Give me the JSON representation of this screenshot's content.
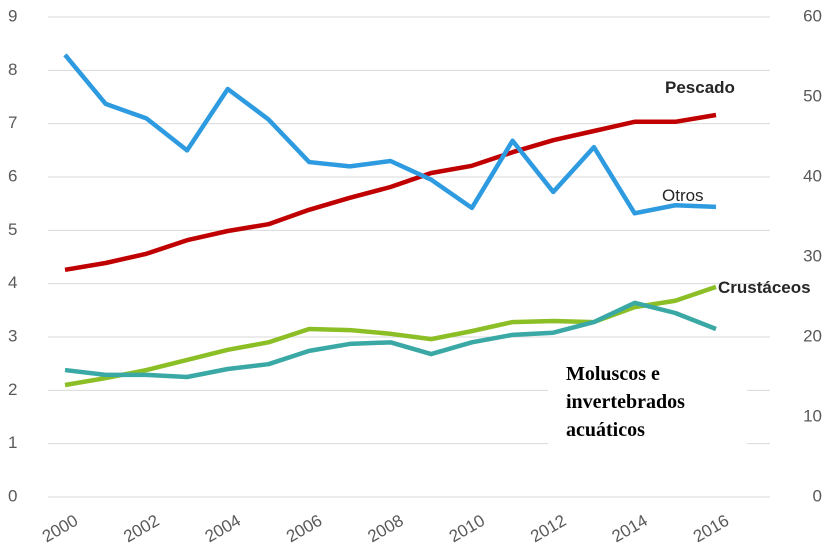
{
  "chart_data": {
    "type": "line",
    "x": [
      2000,
      2001,
      2002,
      2003,
      2004,
      2005,
      2006,
      2007,
      2008,
      2009,
      2010,
      2011,
      2012,
      2013,
      2014,
      2015,
      2016
    ],
    "xlim": [
      2000,
      2016
    ],
    "xticks": [
      2000,
      2002,
      2004,
      2006,
      2008,
      2010,
      2012,
      2014,
      2016
    ],
    "ylim": [
      0,
      9
    ],
    "yticks": [
      0,
      1,
      2,
      3,
      4,
      5,
      6,
      7,
      8,
      9
    ],
    "y2lim": [
      0,
      60
    ],
    "y2ticks": [
      0,
      10,
      20,
      30,
      40,
      50,
      60
    ],
    "grid": true,
    "series": [
      {
        "name": "Pescado",
        "color": "#c00000",
        "axis": "y2",
        "values": [
          28.4,
          29.25,
          30.4,
          32.1,
          33.25,
          34.1,
          35.9,
          37.4,
          38.75,
          40.5,
          41.4,
          43.1,
          44.6,
          45.75,
          46.9,
          46.9,
          47.75
        ]
      },
      {
        "name": "Otros",
        "color": "#2e9be0",
        "values": [
          8.29,
          7.37,
          7.1,
          6.5,
          7.65,
          7.08,
          6.28,
          6.2,
          6.3,
          5.95,
          5.42,
          6.68,
          5.72,
          6.56,
          5.32,
          5.47,
          5.44
        ]
      },
      {
        "name": "Crustáceos",
        "color": "#8cbf26",
        "values": [
          2.1,
          2.23,
          2.38,
          2.57,
          2.76,
          2.9,
          3.15,
          3.13,
          3.06,
          2.96,
          3.11,
          3.28,
          3.3,
          3.28,
          3.56,
          3.68,
          3.94
        ]
      },
      {
        "name": "Moluscos e invertebrados acuáticos",
        "color": "#3aa9a5",
        "values": [
          2.38,
          2.29,
          2.29,
          2.25,
          2.4,
          2.49,
          2.74,
          2.87,
          2.9,
          2.68,
          2.9,
          3.04,
          3.08,
          3.28,
          3.64,
          3.45,
          3.15
        ]
      }
    ]
  }
}
